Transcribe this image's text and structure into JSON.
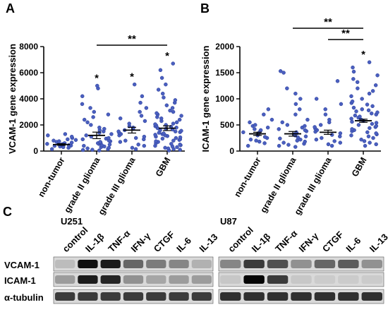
{
  "panels": {
    "a": "A",
    "b": "B",
    "c": "C"
  },
  "chart_data": [
    {
      "type": "scatter",
      "panel": "A",
      "ylabel": "VCAM-1 gene expression",
      "ylim": [
        0,
        8000
      ],
      "yticks": [
        0,
        2000,
        4000,
        6000,
        8000
      ],
      "categories": [
        "non-tumor",
        "grade II glioma",
        "grade III glioma",
        "GBM"
      ],
      "means": [
        500,
        1200,
        1600,
        1750
      ],
      "sem_half": [
        60,
        250,
        220,
        180
      ],
      "series_points": [
        [
          150,
          250,
          300,
          350,
          400,
          420,
          450,
          480,
          500,
          520,
          550,
          580,
          600,
          620,
          650,
          700,
          750,
          800,
          850,
          900,
          1000,
          1100,
          1200,
          1300
        ],
        [
          50,
          80,
          100,
          150,
          200,
          250,
          300,
          350,
          400,
          450,
          500,
          550,
          600,
          650,
          700,
          750,
          800,
          900,
          950,
          1000,
          1100,
          1200,
          1300,
          1400,
          1500,
          1600,
          1700,
          1800,
          2000,
          2200,
          2400,
          2600,
          2800,
          3000,
          3300,
          3600,
          4200,
          4800,
          5000
        ],
        [
          150,
          250,
          400,
          500,
          700,
          800,
          900,
          1000,
          1100,
          1200,
          1300,
          1400,
          1500,
          1600,
          1700,
          1800,
          1900,
          2100,
          2300,
          2500,
          2700,
          3000,
          3300,
          3700,
          4200,
          5100
        ],
        [
          50,
          100,
          150,
          200,
          250,
          300,
          350,
          400,
          450,
          500,
          550,
          600,
          700,
          750,
          800,
          850,
          900,
          950,
          1000,
          1050,
          1100,
          1150,
          1200,
          1250,
          1300,
          1350,
          1400,
          1450,
          1500,
          1550,
          1600,
          1650,
          1700,
          1750,
          1800,
          1850,
          1900,
          1950,
          2000,
          2050,
          2100,
          2200,
          2300,
          2400,
          2500,
          2600,
          2700,
          2800,
          2900,
          3000,
          3100,
          3300,
          3500,
          3700,
          3900,
          4100,
          4400,
          4700,
          5100,
          5600,
          6200,
          6700
        ]
      ],
      "significance_stars": [
        "",
        "*",
        "*",
        "*"
      ],
      "bracket": {
        "from": "grade II glioma",
        "to": "GBM",
        "label": "**"
      }
    },
    {
      "type": "scatter",
      "panel": "B",
      "ylabel": "ICAM-1 gene expression",
      "ylim": [
        0,
        2000
      ],
      "yticks": [
        0,
        500,
        1000,
        1500,
        2000
      ],
      "categories": [
        "non-tumor",
        "grade II glioma",
        "grade III glioma",
        "GBM"
      ],
      "means": [
        330,
        330,
        360,
        580
      ],
      "sem_half": [
        30,
        45,
        40,
        30
      ],
      "series_points": [
        [
          100,
          150,
          180,
          200,
          220,
          250,
          270,
          300,
          320,
          340,
          360,
          380,
          400,
          420,
          450,
          480,
          500,
          550,
          600,
          700,
          800
        ],
        [
          80,
          100,
          120,
          140,
          160,
          180,
          200,
          220,
          240,
          260,
          280,
          300,
          320,
          340,
          360,
          380,
          400,
          420,
          450,
          480,
          500,
          550,
          600,
          700,
          800,
          900,
          1000,
          1100,
          1200,
          1500,
          1530
        ],
        [
          100,
          130,
          160,
          190,
          220,
          250,
          280,
          310,
          340,
          370,
          400,
          430,
          460,
          500,
          550,
          600,
          700,
          800,
          900,
          1000,
          1340
        ],
        [
          100,
          130,
          160,
          190,
          220,
          250,
          280,
          300,
          320,
          340,
          360,
          380,
          400,
          420,
          440,
          460,
          480,
          500,
          520,
          540,
          560,
          580,
          600,
          620,
          640,
          660,
          680,
          700,
          720,
          740,
          760,
          780,
          800,
          830,
          860,
          890,
          920,
          950,
          1000,
          1050,
          1100,
          1150,
          1200,
          1260,
          1320,
          1380,
          1450,
          1520,
          1600,
          1700
        ]
      ],
      "significance_stars": [
        "",
        "",
        "",
        "*"
      ],
      "brackets": [
        {
          "from": "grade II glioma",
          "to": "GBM",
          "label": "**"
        },
        {
          "from": "grade III glioma",
          "to": "GBM",
          "label": "**"
        }
      ]
    }
  ],
  "blot": {
    "cell_lines": [
      "U251",
      "U87"
    ],
    "lanes": [
      "control",
      "IL-1β",
      "TNF-α",
      "IFN-γ",
      "CTGF",
      "IL-6",
      "IL-13"
    ],
    "proteins": [
      "VCAM-1",
      "ICAM-1",
      "α-tubulin"
    ],
    "intensity": {
      "U251": [
        [
          0.15,
          0.95,
          0.9,
          0.55,
          0.45,
          0.4,
          0.2
        ],
        [
          0.3,
          0.9,
          0.85,
          0.35,
          0.25,
          0.3,
          0.3
        ],
        [
          0.75,
          0.75,
          0.75,
          0.75,
          0.75,
          0.75,
          0.75
        ]
      ],
      "U87": [
        [
          0.4,
          0.75,
          0.65,
          0.35,
          0.55,
          0.6,
          0.35
        ],
        [
          0.1,
          1.0,
          0.75,
          0.1,
          0.08,
          0.08,
          0.08
        ],
        [
          0.8,
          0.8,
          0.8,
          0.8,
          0.8,
          0.8,
          0.8
        ]
      ]
    }
  }
}
